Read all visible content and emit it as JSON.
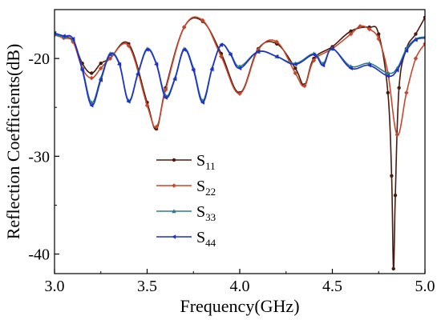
{
  "chart_data": {
    "type": "line",
    "title": "",
    "xlabel": "Frequency(GHz)",
    "ylabel": "Reflection Coefficients(dB)",
    "xlim": [
      3.0,
      5.0
    ],
    "ylim": [
      -42,
      -15
    ],
    "x_ticks": [
      3.0,
      3.5,
      4.0,
      4.5,
      5.0
    ],
    "x_tick_labels": [
      "3.0",
      "3.5",
      "4.0",
      "4.5",
      "5.0"
    ],
    "y_ticks": [
      -20,
      -30,
      -40
    ],
    "y_tick_labels": [
      "-20",
      "-30",
      "-40"
    ],
    "grid": false,
    "legend_position": "lower-left",
    "series": [
      {
        "name": "S11",
        "label_main": "S",
        "label_sub": "11",
        "color": "#4a1a0e",
        "marker": "circle",
        "x": [
          3.0,
          3.05,
          3.1,
          3.15,
          3.2,
          3.25,
          3.3,
          3.4,
          3.5,
          3.55,
          3.6,
          3.7,
          3.8,
          3.9,
          4.0,
          4.1,
          4.2,
          4.3,
          4.35,
          4.4,
          4.5,
          4.6,
          4.7,
          4.75,
          4.8,
          4.82,
          4.83,
          4.84,
          4.86,
          4.9,
          4.95,
          5.0
        ],
        "y": [
          -17.5,
          -17.8,
          -18.2,
          -20.5,
          -21.5,
          -20.5,
          -20.0,
          -18.5,
          -24.5,
          -27.2,
          -23.0,
          -16.8,
          -16.2,
          -19.5,
          -23.5,
          -19.0,
          -18.5,
          -21.0,
          -22.7,
          -20.0,
          -18.8,
          -17.2,
          -16.8,
          -17.5,
          -23.5,
          -32.0,
          -41.5,
          -34.0,
          -23.0,
          -19.0,
          -17.5,
          -15.8
        ]
      },
      {
        "name": "S22",
        "label_main": "S",
        "label_sub": "22",
        "color": "#c8462c",
        "marker": "diamond",
        "x": [
          3.0,
          3.05,
          3.1,
          3.15,
          3.2,
          3.25,
          3.3,
          3.4,
          3.5,
          3.55,
          3.6,
          3.7,
          3.8,
          3.9,
          4.0,
          4.1,
          4.2,
          4.3,
          4.35,
          4.4,
          4.5,
          4.6,
          4.65,
          4.7,
          4.75,
          4.8,
          4.85,
          4.9,
          4.95,
          5.0
        ],
        "y": [
          -17.6,
          -17.9,
          -18.3,
          -21.0,
          -22.0,
          -21.0,
          -20.0,
          -18.7,
          -24.8,
          -27.0,
          -23.2,
          -16.8,
          -16.1,
          -19.8,
          -23.6,
          -19.1,
          -18.3,
          -21.5,
          -22.8,
          -20.2,
          -19.0,
          -17.5,
          -16.7,
          -17.0,
          -18.0,
          -21.5,
          -27.8,
          -23.5,
          -20.0,
          -18.5
        ]
      },
      {
        "name": "S33",
        "label_main": "S",
        "label_sub": "33",
        "color": "#2b7d8c",
        "marker": "triangle",
        "x": [
          3.0,
          3.05,
          3.1,
          3.15,
          3.2,
          3.25,
          3.3,
          3.35,
          3.4,
          3.45,
          3.5,
          3.55,
          3.6,
          3.65,
          3.7,
          3.75,
          3.8,
          3.85,
          3.9,
          3.95,
          4.0,
          4.1,
          4.2,
          4.3,
          4.4,
          4.45,
          4.5,
          4.6,
          4.7,
          4.8,
          4.85,
          4.9,
          4.95,
          5.0
        ],
        "y": [
          -17.5,
          -17.8,
          -18.0,
          -21.0,
          -24.5,
          -22.0,
          -19.5,
          -20.5,
          -24.3,
          -21.5,
          -19.0,
          -20.5,
          -23.8,
          -22.0,
          -19.0,
          -21.0,
          -24.3,
          -21.0,
          -18.6,
          -19.5,
          -20.8,
          -19.3,
          -19.8,
          -20.5,
          -19.5,
          -20.5,
          -19.0,
          -20.8,
          -20.5,
          -21.5,
          -21.0,
          -19.0,
          -18.0,
          -17.8
        ]
      },
      {
        "name": "S44",
        "label_main": "S",
        "label_sub": "44",
        "color": "#1f2ecc",
        "marker": "triangle-left",
        "x": [
          3.0,
          3.05,
          3.1,
          3.15,
          3.2,
          3.25,
          3.3,
          3.35,
          3.4,
          3.45,
          3.5,
          3.55,
          3.6,
          3.65,
          3.7,
          3.75,
          3.8,
          3.85,
          3.9,
          3.95,
          4.0,
          4.1,
          4.2,
          4.3,
          4.4,
          4.45,
          4.5,
          4.6,
          4.7,
          4.8,
          4.85,
          4.9,
          4.95,
          5.0
        ],
        "y": [
          -17.4,
          -17.7,
          -18.0,
          -21.2,
          -24.8,
          -22.2,
          -19.6,
          -20.6,
          -24.4,
          -21.6,
          -19.1,
          -20.6,
          -24.0,
          -22.1,
          -19.1,
          -21.2,
          -24.5,
          -21.1,
          -18.6,
          -19.6,
          -21.0,
          -19.3,
          -19.8,
          -20.6,
          -19.6,
          -20.7,
          -19.0,
          -21.0,
          -20.7,
          -21.8,
          -21.2,
          -19.2,
          -18.1,
          -17.9
        ]
      }
    ]
  }
}
